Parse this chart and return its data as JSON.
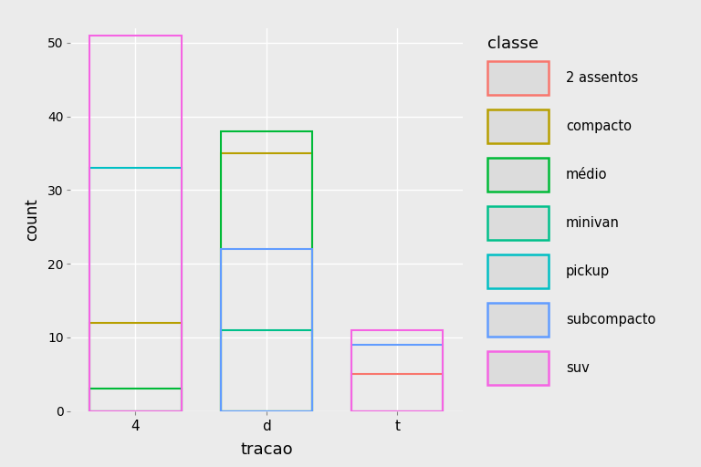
{
  "title": "",
  "xlabel": "tracao",
  "ylabel": "count",
  "legend_title": "classe",
  "traction_categories": [
    "4",
    "d",
    "t"
  ],
  "classes": [
    "2 assentos",
    "compacto",
    "médio",
    "minivan",
    "pickup",
    "subcompacto",
    "suv"
  ],
  "colors": {
    "2 assentos": "#F8766D",
    "compacto": "#B79F00",
    "médio": "#00BA38",
    "minivan": "#00C08B",
    "pickup": "#00BFC4",
    "subcompacto": "#619CFF",
    "suv": "#F564E3"
  },
  "bar_data": {
    "4": {
      "2 assentos": 0,
      "compacto": 12,
      "médio": 3,
      "minivan": 0,
      "pickup": 33,
      "subcompacto": 0,
      "suv": 51
    },
    "d": {
      "2 assentos": 0,
      "compacto": 35,
      "médio": 38,
      "minivan": 11,
      "pickup": 0,
      "subcompacto": 22,
      "suv": 0
    },
    "t": {
      "2 assentos": 5,
      "compacto": 0,
      "médio": 0,
      "minivan": 0,
      "pickup": 0,
      "subcompacto": 9,
      "suv": 11
    }
  },
  "ylim": [
    0,
    52
  ],
  "yticks": [
    0,
    10,
    20,
    30,
    40,
    50
  ],
  "background_color": "#EBEBEB",
  "grid_color": "#FFFFFF",
  "bar_width": 0.7,
  "legend_key_bg": "#DCDCDC"
}
